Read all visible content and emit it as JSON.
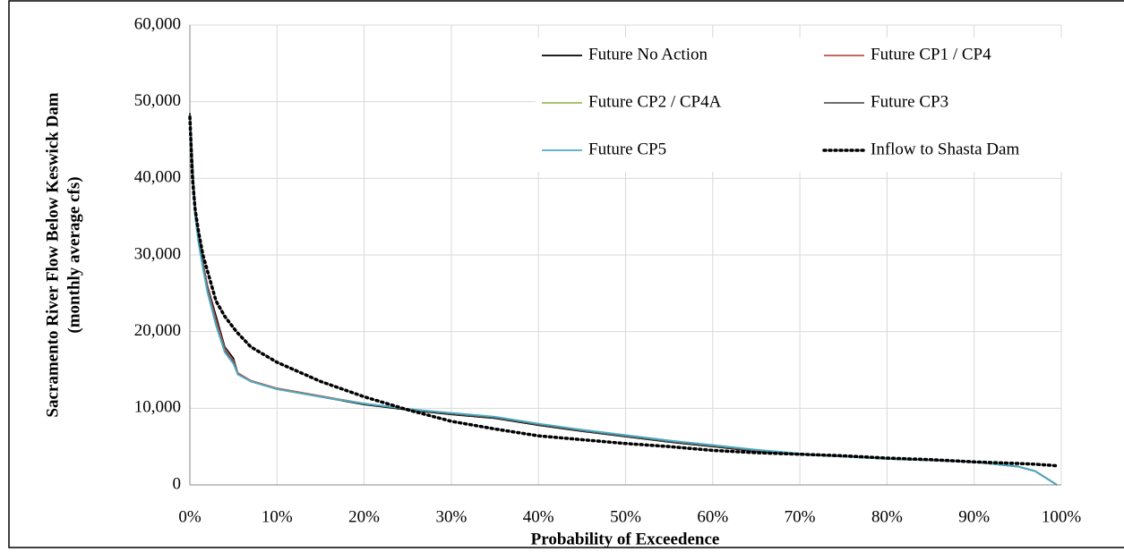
{
  "chart_data": {
    "type": "line",
    "xlabel": "Probability of Exceedence",
    "ylabel": [
      "Sacramento River Flow Below Keswick Dam",
      "(monthly average cfs)"
    ],
    "x": [
      0,
      0.3,
      0.6,
      1,
      1.5,
      2,
      3,
      4,
      5,
      5.5,
      7,
      10,
      15,
      20,
      25,
      30,
      35,
      40,
      45,
      50,
      55,
      60,
      65,
      70,
      75,
      80,
      85,
      90,
      95,
      97,
      99.5
    ],
    "series": [
      {
        "name": "Future No Action",
        "color": "#000000",
        "dash": "solid",
        "values": [
          48500,
          42000,
          36000,
          32500,
          29000,
          26000,
          22000,
          18000,
          16500,
          14500,
          13500,
          12500,
          11500,
          10500,
          9800,
          9200,
          8700,
          7800,
          7000,
          6300,
          5600,
          5000,
          4400,
          4000,
          3700,
          3400,
          3200,
          3000,
          2400,
          1800,
          0
        ]
      },
      {
        "name": "Future CP1 / CP4",
        "color": "#c0504d",
        "dash": "solid",
        "values": [
          48300,
          41500,
          35500,
          32000,
          28800,
          25800,
          21500,
          17800,
          16200,
          14600,
          13600,
          12600,
          11600,
          10600,
          9900,
          9300,
          8800,
          7900,
          7100,
          6400,
          5700,
          5100,
          4500,
          4000,
          3700,
          3400,
          3200,
          3000,
          2400,
          1800,
          0
        ]
      },
      {
        "name": "Future CP2 / CP4A",
        "color": "#9bbb59",
        "dash": "solid",
        "values": [
          48300,
          41500,
          35500,
          32000,
          28500,
          25500,
          21000,
          17500,
          16000,
          14500,
          13500,
          12500,
          11500,
          10600,
          9900,
          9300,
          8800,
          7900,
          7100,
          6400,
          5700,
          5100,
          4500,
          4000,
          3700,
          3400,
          3200,
          3000,
          2400,
          1800,
          0
        ]
      },
      {
        "name": "Future CP3",
        "color": "#595959",
        "dash": "solid",
        "values": [
          48300,
          41500,
          35500,
          32000,
          28500,
          25500,
          21000,
          17500,
          16000,
          14500,
          13500,
          12500,
          11500,
          10600,
          9900,
          9300,
          8800,
          7900,
          7100,
          6400,
          5700,
          5100,
          4500,
          4000,
          3700,
          3400,
          3200,
          3000,
          2400,
          1800,
          0
        ]
      },
      {
        "name": "Future CP5",
        "color": "#4bacc6",
        "dash": "solid",
        "values": [
          48200,
          41000,
          35000,
          31500,
          28200,
          25200,
          20800,
          17300,
          15800,
          14400,
          13500,
          12500,
          11500,
          10600,
          9900,
          9400,
          8900,
          8000,
          7200,
          6500,
          5800,
          5200,
          4600,
          4100,
          3700,
          3400,
          3200,
          3000,
          2400,
          1800,
          0
        ]
      },
      {
        "name": "Inflow to Shasta Dam",
        "color": "#000000",
        "dash": "dotted",
        "values": [
          48000,
          40000,
          36000,
          33000,
          30000,
          28000,
          24000,
          22000,
          20500,
          19800,
          18000,
          16000,
          13500,
          11500,
          9800,
          8300,
          7300,
          6400,
          5900,
          5400,
          5000,
          4500,
          4200,
          4000,
          3800,
          3500,
          3300,
          3000,
          2800,
          2700,
          2500
        ]
      }
    ],
    "xlim": [
      0,
      100
    ],
    "xticks": [
      {
        "value": 0,
        "label": "0%"
      },
      {
        "value": 10,
        "label": "10%"
      },
      {
        "value": 20,
        "label": "20%"
      },
      {
        "value": 30,
        "label": "30%"
      },
      {
        "value": 40,
        "label": "40%"
      },
      {
        "value": 50,
        "label": "50%"
      },
      {
        "value": 60,
        "label": "60%"
      },
      {
        "value": 70,
        "label": "70%"
      },
      {
        "value": 80,
        "label": "80%"
      },
      {
        "value": 90,
        "label": "90%"
      },
      {
        "value": 100,
        "label": "100%"
      }
    ],
    "ylim": [
      0,
      60000
    ],
    "yticks": [
      0,
      {
        "value": 10000,
        "label": "10,000"
      },
      {
        "value": 20000,
        "label": "20,000"
      },
      {
        "value": 30000,
        "label": "30,000"
      },
      {
        "value": 40000,
        "label": "40,000"
      },
      {
        "value": 50000,
        "label": "50,000"
      },
      {
        "value": 60000,
        "label": "60,000"
      }
    ],
    "grid": true,
    "legend": "top-right"
  }
}
